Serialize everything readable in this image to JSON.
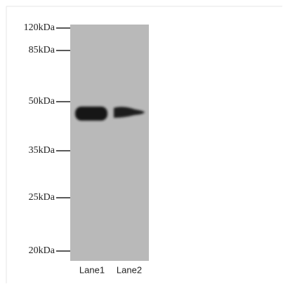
{
  "markers": [
    "120kDa",
    "85kDa",
    "50kDa",
    "35kDa",
    "25kDa",
    "20kDa"
  ],
  "lanes": [
    "Lane1",
    "Lane2"
  ]
}
